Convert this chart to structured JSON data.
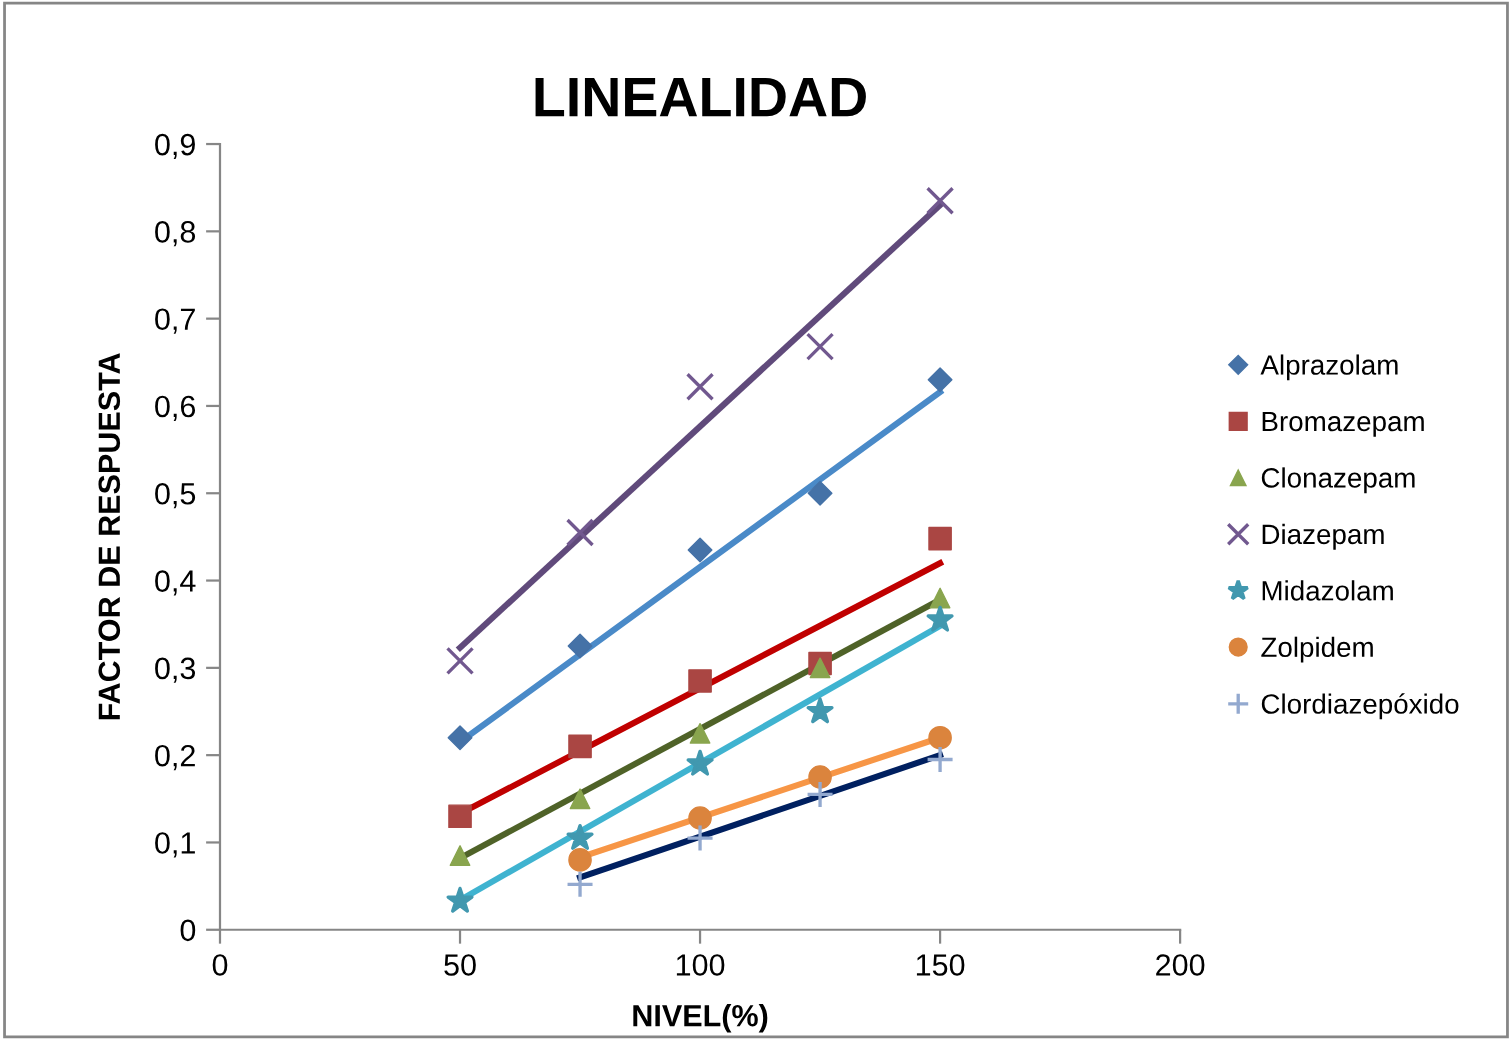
{
  "chart_data": {
    "type": "scatter",
    "title": "LINEALIDAD",
    "xlabel": "NIVEL(%)",
    "ylabel": "FACTOR DE RESPUESTA",
    "xlim": [
      0,
      200
    ],
    "xticks": [
      0,
      50,
      100,
      150,
      200
    ],
    "ylim": [
      0,
      0.9
    ],
    "yticks": [
      0,
      {
        "value": 0.1,
        "label": "0,1"
      },
      {
        "value": 0.2,
        "label": "0,2"
      },
      {
        "value": 0.3,
        "label": "0,3"
      },
      {
        "value": 0.4,
        "label": "0,4"
      },
      {
        "value": 0.5,
        "label": "0,5"
      },
      {
        "value": 0.6,
        "label": "0,6"
      },
      {
        "value": 0.7,
        "label": "0,7"
      },
      {
        "value": 0.8,
        "label": "0,8"
      },
      {
        "value": 0.9,
        "label": "0,9"
      }
    ],
    "grid": false,
    "legend": "right",
    "series": [
      {
        "type": "line",
        "marker": "none",
        "color": "#604a7b",
        "x": [
          50,
          150
        ],
        "values": [
          0.323,
          0.83
        ]
      },
      {
        "type": "line",
        "marker": "none",
        "color": "#4a8ac8",
        "x": [
          50,
          150
        ],
        "values": [
          0.215,
          0.616
        ]
      },
      {
        "type": "line",
        "marker": "none",
        "color": "#c00000",
        "x": [
          50,
          150
        ],
        "values": [
          0.133,
          0.42
        ]
      },
      {
        "type": "line",
        "marker": "none",
        "color": "#4f6228",
        "x": [
          50,
          150
        ],
        "values": [
          0.082,
          0.378
        ]
      },
      {
        "type": "line",
        "marker": "none",
        "color": "#3fb3d0",
        "x": [
          50,
          150
        ],
        "values": [
          0.034,
          0.348
        ]
      },
      {
        "type": "line",
        "marker": "none",
        "color": "#f79646",
        "x": [
          75,
          150
        ],
        "values": [
          0.083,
          0.22
        ]
      },
      {
        "type": "line",
        "marker": "none",
        "color": "#002060",
        "x": [
          75,
          150
        ],
        "values": [
          0.06,
          0.2
        ]
      },
      {
        "name": "Alprazolam",
        "marker": "diamond",
        "color": "#4572a7",
        "x": [
          50,
          75,
          100,
          125,
          150
        ],
        "values": [
          0.22,
          0.325,
          0.435,
          0.5,
          0.63
        ]
      },
      {
        "name": "Bromazepam",
        "marker": "square",
        "color": "#aa4643",
        "x": [
          50,
          75,
          100,
          125,
          150
        ],
        "values": [
          0.13,
          0.21,
          0.285,
          0.305,
          0.448
        ]
      },
      {
        "name": "Clonazepam",
        "marker": "triangle",
        "color": "#89a54e",
        "x": [
          50,
          75,
          100,
          125,
          150
        ],
        "values": [
          0.085,
          0.15,
          0.225,
          0.3,
          0.38
        ]
      },
      {
        "name": "Diazepam",
        "marker": "x",
        "color": "#71588f",
        "x": [
          50,
          75,
          100,
          125,
          150
        ],
        "values": [
          0.308,
          0.455,
          0.622,
          0.668,
          0.835
        ]
      },
      {
        "name": "Midazolam",
        "marker": "star",
        "color": "#4198af",
        "x": [
          50,
          75,
          100,
          125,
          150
        ],
        "values": [
          0.033,
          0.105,
          0.19,
          0.25,
          0.355
        ]
      },
      {
        "name": "Zolpidem",
        "marker": "circle",
        "color": "#db843d",
        "x": [
          75,
          100,
          125,
          150
        ],
        "values": [
          0.08,
          0.128,
          0.175,
          0.22
        ]
      },
      {
        "name": "Clordiazepóxido",
        "marker": "cross",
        "color": "#93a9cf",
        "x": [
          75,
          100,
          125,
          150
        ],
        "values": [
          0.052,
          0.105,
          0.155,
          0.195
        ]
      }
    ]
  }
}
